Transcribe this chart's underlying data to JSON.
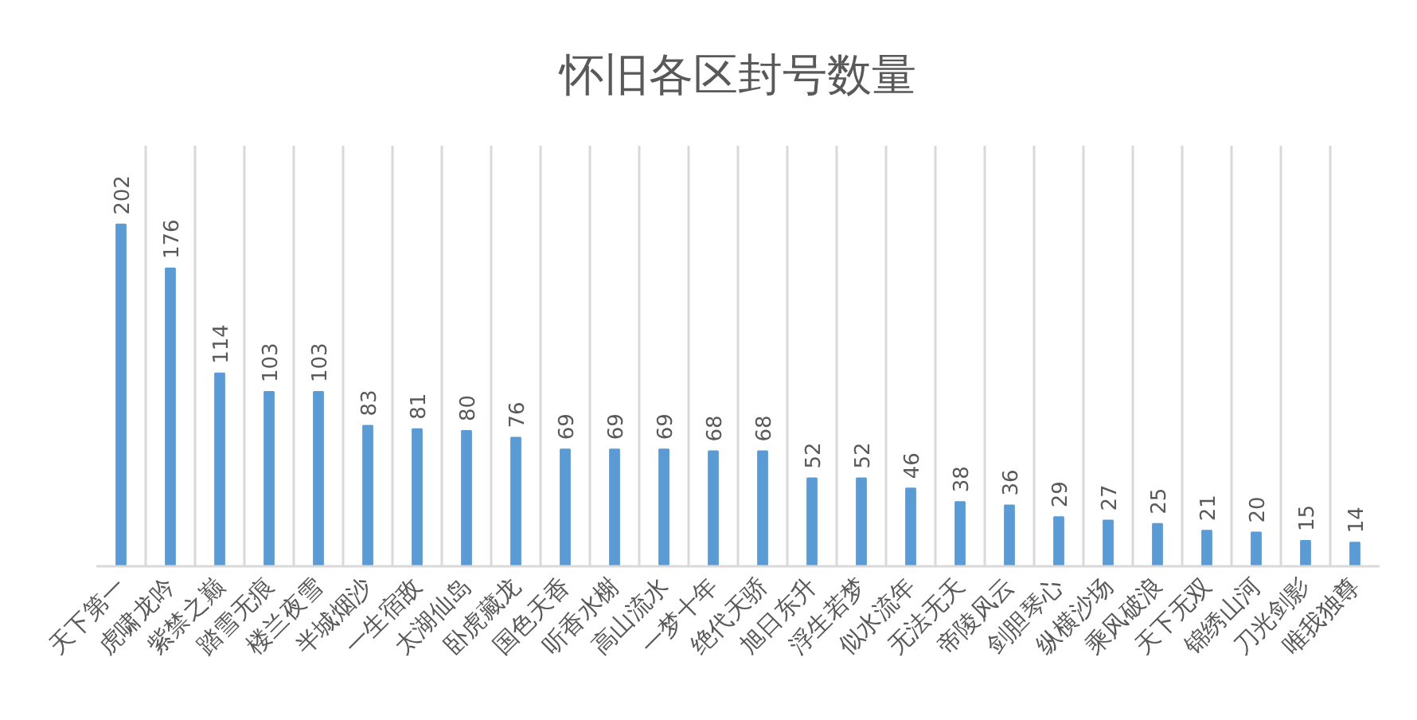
{
  "chart_data": {
    "type": "bar",
    "title": "怀旧各区封号数量",
    "categories": [
      "天下第一",
      "虎啸龙吟",
      "紫禁之巅",
      "踏雪无痕",
      "楼兰夜雪",
      "半城烟沙",
      "一生宿敌",
      "太湖仙岛",
      "卧虎藏龙",
      "国色天香",
      "听香水榭",
      "高山流水",
      "一梦十年",
      "绝代天骄",
      "旭日东升",
      "浮生若梦",
      "似水流年",
      "无法无天",
      "帝陵风云",
      "剑胆琴心",
      "纵横沙场",
      "乘风破浪",
      "天下无双",
      "锦绣山河",
      "刀光剑影",
      "唯我独尊"
    ],
    "values": [
      202,
      176,
      114,
      103,
      103,
      83,
      81,
      80,
      76,
      69,
      69,
      69,
      68,
      68,
      52,
      52,
      46,
      38,
      36,
      29,
      27,
      25,
      21,
      20,
      15,
      14
    ],
    "color": "#5b9bd5",
    "data_labels": true,
    "grid": "x",
    "tick_labels": "x"
  }
}
